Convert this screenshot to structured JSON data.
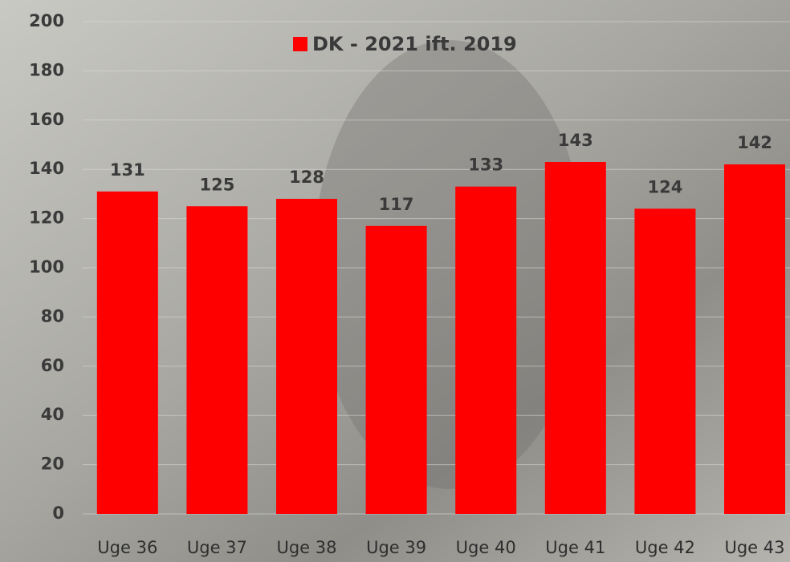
{
  "chart_data": {
    "type": "bar",
    "categories": [
      "Uge 36",
      "Uge 37",
      "Uge 38",
      "Uge 39",
      "Uge 40",
      "Uge 41",
      "Uge 42",
      "Uge 43"
    ],
    "series": [
      {
        "name": "DK - 2021 ift. 2019",
        "color": "#ff0000",
        "values": [
          131,
          125,
          128,
          117,
          133,
          143,
          124,
          142
        ]
      }
    ],
    "ylim": [
      0,
      200
    ],
    "yticks": [
      0,
      20,
      40,
      60,
      80,
      100,
      120,
      140,
      160,
      180,
      200
    ],
    "grid": true,
    "legend": "top"
  }
}
